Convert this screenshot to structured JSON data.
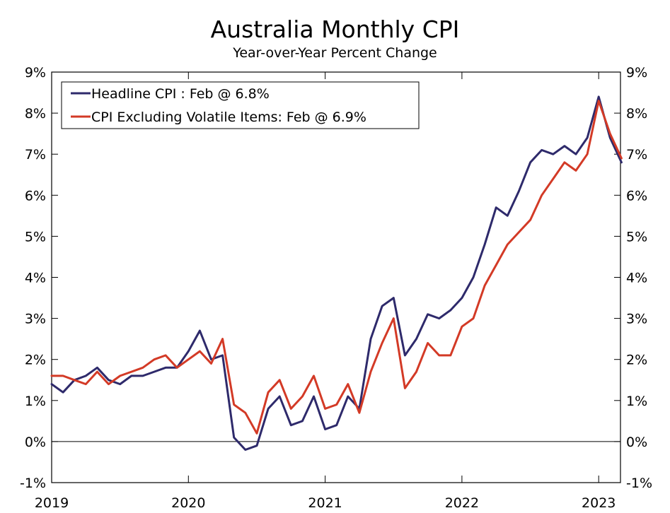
{
  "chart_data": {
    "type": "line",
    "title": "Australia Monthly CPI",
    "subtitle": "Year-over-Year Percent Change",
    "xlabel": "",
    "ylabel": "",
    "ylim": [
      -1,
      9
    ],
    "y_ticks": [
      -1,
      0,
      1,
      2,
      3,
      4,
      5,
      6,
      7,
      8,
      9
    ],
    "y_tick_labels": [
      "-1%",
      "0%",
      "1%",
      "2%",
      "3%",
      "4%",
      "5%",
      "6%",
      "7%",
      "8%",
      "9%"
    ],
    "x_range": [
      "2019-01",
      "2023-03"
    ],
    "x_tick_labels": [
      "2019",
      "2020",
      "2021",
      "2022",
      "2023"
    ],
    "x_ticks_month_index": [
      0,
      12,
      24,
      36,
      48
    ],
    "x_start": "2019-01",
    "legend_position": "top-left",
    "series": [
      {
        "name": "Headline CPI : Feb @ 6.8%",
        "color": "#2e2a6b",
        "values": [
          1.4,
          1.2,
          1.5,
          1.6,
          1.8,
          1.5,
          1.4,
          1.6,
          1.6,
          1.7,
          1.8,
          1.8,
          2.2,
          2.7,
          2.0,
          2.1,
          0.1,
          -0.2,
          -0.1,
          0.8,
          1.1,
          0.4,
          0.5,
          1.1,
          0.3,
          0.4,
          1.1,
          0.8,
          2.5,
          3.3,
          3.5,
          2.1,
          2.5,
          3.1,
          3.0,
          3.2,
          3.5,
          4.0,
          4.8,
          5.7,
          5.5,
          6.1,
          6.8,
          7.1,
          7.0,
          7.2,
          7.0,
          7.4,
          8.4,
          7.4,
          6.8
        ]
      },
      {
        "name": "CPI Excluding Volatile Items: Feb @ 6.9%",
        "color": "#d33a26",
        "values": [
          1.6,
          1.6,
          1.5,
          1.4,
          1.7,
          1.4,
          1.6,
          1.7,
          1.8,
          2.0,
          2.1,
          1.8,
          2.0,
          2.2,
          1.9,
          2.5,
          0.9,
          0.7,
          0.2,
          1.2,
          1.5,
          0.8,
          1.1,
          1.6,
          0.8,
          0.9,
          1.4,
          0.7,
          1.7,
          2.4,
          3.0,
          1.3,
          1.7,
          2.4,
          2.1,
          2.1,
          2.8,
          3.0,
          3.8,
          4.3,
          4.8,
          5.1,
          5.4,
          6.0,
          6.4,
          6.8,
          6.6,
          7.0,
          8.3,
          7.5,
          6.9
        ]
      }
    ]
  }
}
